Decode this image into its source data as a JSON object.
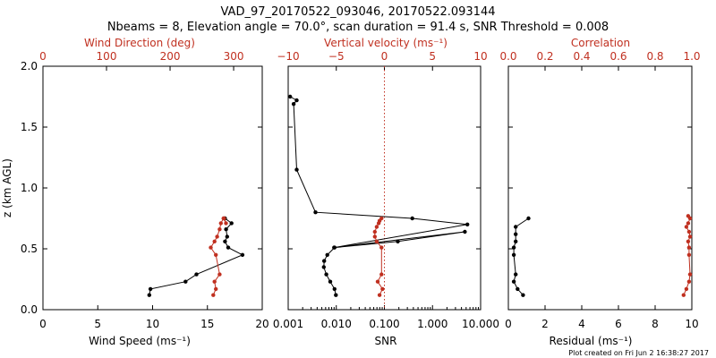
{
  "colors": {
    "black": "#000000",
    "red": "#c03020"
  },
  "title": {
    "line1": "VAD_97_20170522_093046, 20170522.093144",
    "line2": "Nbeams = 8, Elevation angle = 70.0°, scan duration = 91.4 s, SNR Threshold = 0.008"
  },
  "footer": "Plot created on Fri Jun  2 16:38:27 2017",
  "chart_data": [
    {
      "type": "line",
      "ylabel": "z (km AGL)",
      "ylim": [
        0.0,
        2.0
      ],
      "yticks": [
        "0.0",
        "0.5",
        "1.0",
        "1.5",
        "2.0"
      ],
      "bottom_axis": {
        "label": "Wind Speed (ms⁻¹)",
        "xlim": [
          0,
          20
        ],
        "ticks": [
          "0",
          "5",
          "10",
          "15",
          "20"
        ]
      },
      "top_axis": {
        "label": "Wind Direction (deg)",
        "xlim": [
          0,
          345
        ],
        "ticks": [
          "0",
          "100",
          "200",
          "300"
        ]
      },
      "series": [
        {
          "axis": "bottom",
          "color": "black",
          "x": [
            9.7,
            9.8,
            13.0,
            14.0,
            18.2,
            16.9,
            16.6,
            16.8,
            16.7,
            17.2,
            16.6
          ],
          "y": [
            0.12,
            0.17,
            0.23,
            0.29,
            0.45,
            0.51,
            0.56,
            0.6,
            0.66,
            0.71,
            0.75
          ]
        },
        {
          "axis": "top",
          "color": "red",
          "x": [
            268,
            272,
            270,
            278,
            272,
            264,
            270,
            274,
            278,
            280,
            284,
            288,
            285
          ],
          "y": [
            0.12,
            0.17,
            0.23,
            0.29,
            0.45,
            0.51,
            0.56,
            0.6,
            0.66,
            0.71,
            0.75,
            0.71,
            0.75
          ]
        }
      ]
    },
    {
      "type": "line",
      "ylim": [
        0.0,
        2.0
      ],
      "bottom_axis": {
        "label": "SNR",
        "scale": "log",
        "xlim": [
          0.001,
          10.0
        ],
        "ticks": [
          "0.001",
          "0.010",
          "0.100",
          "1.000",
          "10.000"
        ]
      },
      "top_axis": {
        "label": "Vertical velocity (ms⁻¹)",
        "xlim": [
          -10,
          10
        ],
        "ticks": [
          "−10",
          "−5",
          "0",
          "5",
          "10"
        ]
      },
      "series": [
        {
          "axis": "bottom",
          "color": "black",
          "x": [
            0.0098,
            0.0092,
            0.0075,
            0.0062,
            0.0055,
            0.0056,
            0.0065,
            0.0092,
            0.19,
            4.7,
            0.009,
            5.3,
            0.38,
            0.0037,
            0.0015,
            0.0013,
            0.0015,
            0.0011
          ],
          "y": [
            0.12,
            0.17,
            0.23,
            0.29,
            0.35,
            0.4,
            0.45,
            0.51,
            0.56,
            0.64,
            0.51,
            0.7,
            0.75,
            0.8,
            1.15,
            1.69,
            1.72,
            1.75
          ]
        },
        {
          "axis": "top",
          "color": "red",
          "x": [
            -0.5,
            -0.2,
            -0.7,
            -0.3,
            -0.3,
            -0.8,
            -1.0,
            -1.0,
            -0.8,
            -0.6,
            -0.5,
            -0.3
          ],
          "y": [
            0.12,
            0.17,
            0.23,
            0.29,
            0.51,
            0.56,
            0.6,
            0.64,
            0.68,
            0.71,
            0.73,
            0.75
          ]
        }
      ],
      "reference_line": {
        "axis": "top",
        "x": 0,
        "style": "dotted",
        "color": "red"
      }
    },
    {
      "type": "line",
      "ylim": [
        0.0,
        2.0
      ],
      "bottom_axis": {
        "label": "Residual (ms⁻¹)",
        "xlim": [
          0,
          10
        ],
        "ticks": [
          "0",
          "2",
          "4",
          "6",
          "8",
          "10"
        ]
      },
      "top_axis": {
        "label": "Correlation",
        "xlim": [
          0.0,
          1.0
        ],
        "ticks": [
          "0.0",
          "0.2",
          "0.4",
          "0.6",
          "0.8",
          "1.0"
        ]
      },
      "series": [
        {
          "axis": "bottom",
          "color": "black",
          "x": [
            0.8,
            0.5,
            0.3,
            0.4,
            0.3,
            0.3,
            0.4,
            0.4,
            0.4,
            1.1
          ],
          "y": [
            0.12,
            0.17,
            0.23,
            0.29,
            0.45,
            0.51,
            0.56,
            0.62,
            0.68,
            0.75
          ]
        },
        {
          "axis": "top",
          "color": "red",
          "x": [
            0.955,
            0.97,
            0.985,
            0.99,
            0.985,
            0.985,
            0.98,
            0.99,
            0.985,
            0.97,
            0.98,
            0.99,
            0.98
          ],
          "y": [
            0.12,
            0.17,
            0.23,
            0.29,
            0.45,
            0.51,
            0.56,
            0.6,
            0.64,
            0.68,
            0.71,
            0.75,
            0.77
          ]
        }
      ]
    }
  ]
}
